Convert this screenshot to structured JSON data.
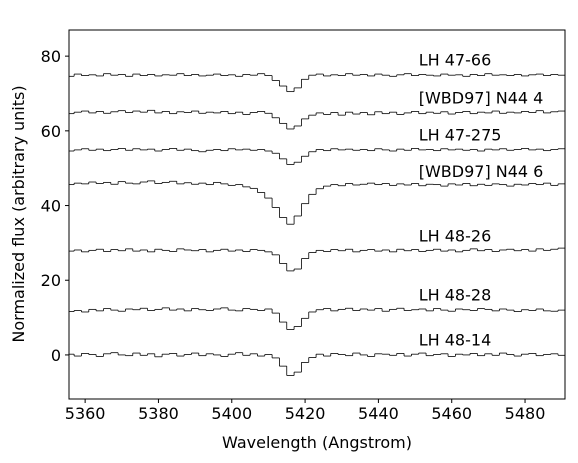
{
  "chart_data": {
    "type": "line",
    "drawstyle": "steps-mid",
    "x_label": "Wavelength (Angstrom)",
    "y_label": "Normalized flux (arbitrary units)",
    "xlim": [
      5355.6,
      5490.9
    ],
    "ylim": [
      -11.8,
      87
    ],
    "xticks": [
      5360,
      5380,
      5400,
      5420,
      5440,
      5460,
      5480
    ],
    "yticks": [
      0,
      20,
      40,
      60,
      80
    ],
    "x": [
      5356,
      5358,
      5360,
      5362,
      5364,
      5366,
      5368,
      5370,
      5372,
      5374,
      5376,
      5378,
      5380,
      5382,
      5384,
      5386,
      5388,
      5390,
      5392,
      5394,
      5396,
      5398,
      5400,
      5402,
      5404,
      5406,
      5408,
      5410,
      5412,
      5414,
      5416,
      5418,
      5420,
      5422,
      5424,
      5426,
      5428,
      5430,
      5432,
      5434,
      5436,
      5438,
      5440,
      5442,
      5444,
      5446,
      5448,
      5450,
      5452,
      5454,
      5456,
      5458,
      5460,
      5462,
      5464,
      5466,
      5468,
      5470,
      5472,
      5474,
      5476,
      5478,
      5480,
      5482,
      5484,
      5486,
      5488,
      5490
    ],
    "series": [
      {
        "name": "LH 48-14",
        "color": "#000000",
        "values": [
          0.2,
          -0.3,
          0.4,
          0.1,
          -0.4,
          0.3,
          0.6,
          0.0,
          -0.2,
          0.5,
          -0.1,
          0.3,
          -0.5,
          0.2,
          0.4,
          -0.3,
          0.1,
          0.5,
          -0.2,
          0.3,
          0.0,
          -0.4,
          0.2,
          0.6,
          -0.1,
          0.3,
          -0.3,
          0.1,
          -0.8,
          -3.0,
          -5.5,
          -4.6,
          -2.0,
          -0.7,
          0.2,
          -0.3,
          0.4,
          0.1,
          -0.2,
          0.5,
          0.0,
          -0.4,
          0.3,
          0.2,
          -0.1,
          0.4,
          -0.3,
          0.2,
          0.5,
          -0.2,
          0.1,
          0.3,
          -0.4,
          0.2,
          0.0,
          0.4,
          -0.2,
          0.3,
          -0.1,
          0.5,
          0.1,
          -0.3,
          0.2,
          0.4,
          -0.2,
          0.1,
          0.3,
          -0.1
        ]
      },
      {
        "name": "LH 48-28",
        "color": "#000000",
        "values": [
          11.6,
          11.9,
          11.5,
          12.2,
          11.8,
          12.4,
          12.0,
          11.7,
          12.3,
          12.1,
          12.5,
          11.9,
          12.2,
          12.6,
          12.0,
          12.3,
          11.8,
          12.4,
          12.1,
          11.9,
          12.3,
          12.6,
          12.0,
          11.8,
          12.4,
          12.2,
          11.9,
          12.3,
          11.2,
          8.8,
          6.8,
          7.6,
          9.8,
          11.5,
          12.1,
          12.4,
          11.8,
          12.2,
          12.5,
          11.9,
          12.3,
          12.0,
          12.4,
          11.7,
          12.2,
          12.5,
          11.9,
          12.1,
          12.3,
          11.8,
          12.4,
          12.0,
          11.7,
          12.3,
          12.1,
          11.9,
          12.4,
          12.2,
          11.8,
          12.3,
          12.0,
          11.6,
          12.1,
          11.9,
          12.3,
          11.8,
          11.7,
          12.0
        ]
      },
      {
        "name": "LH 48-26",
        "color": "#000000",
        "values": [
          27.8,
          28.1,
          27.6,
          28.0,
          28.3,
          27.7,
          28.2,
          27.9,
          28.4,
          27.8,
          28.1,
          27.6,
          28.3,
          28.0,
          27.7,
          28.4,
          28.1,
          27.9,
          28.2,
          27.6,
          28.0,
          28.3,
          27.8,
          28.1,
          27.7,
          28.2,
          28.0,
          27.6,
          26.8,
          24.5,
          22.5,
          23.0,
          25.8,
          27.4,
          28.0,
          27.7,
          28.2,
          27.9,
          28.3,
          27.6,
          28.0,
          28.2,
          27.8,
          28.1,
          27.6,
          28.3,
          27.9,
          28.2,
          27.7,
          28.0,
          28.3,
          27.8,
          28.1,
          27.6,
          28.0,
          28.4,
          27.9,
          28.2,
          27.7,
          28.1,
          28.3,
          27.9,
          28.2,
          27.8,
          28.4,
          28.0,
          28.3,
          28.6
        ]
      },
      {
        "name": "[WBD97] N44 6",
        "color": "#000000",
        "values": [
          45.6,
          46.0,
          45.8,
          46.3,
          45.9,
          46.2,
          45.7,
          46.4,
          46.0,
          45.8,
          46.3,
          46.6,
          45.9,
          46.2,
          46.5,
          45.8,
          46.1,
          45.7,
          46.0,
          45.6,
          46.2,
          45.8,
          45.4,
          45.6,
          45.0,
          44.6,
          43.5,
          42.0,
          39.5,
          36.8,
          35.0,
          37.2,
          40.5,
          43.0,
          44.5,
          45.2,
          45.6,
          45.3,
          45.9,
          45.5,
          45.7,
          46.0,
          45.6,
          45.9,
          45.4,
          45.8,
          45.5,
          45.9,
          45.3,
          45.7,
          45.6,
          45.2,
          45.8,
          45.5,
          45.9,
          45.3,
          45.7,
          45.4,
          45.8,
          45.6,
          45.2,
          45.7,
          45.5,
          45.9,
          45.6,
          46.0,
          45.4,
          45.8
        ]
      },
      {
        "name": "LH 47-275",
        "color": "#000000",
        "values": [
          54.6,
          54.9,
          55.2,
          54.8,
          55.1,
          54.7,
          55.0,
          55.3,
          54.8,
          55.2,
          54.9,
          55.1,
          54.6,
          55.0,
          55.3,
          54.8,
          55.1,
          54.7,
          54.4,
          54.8,
          55.0,
          54.7,
          55.2,
          54.9,
          55.1,
          54.8,
          55.0,
          54.6,
          54.0,
          52.5,
          51.0,
          51.6,
          53.2,
          54.4,
          55.0,
          54.7,
          55.2,
          54.9,
          55.1,
          54.8,
          55.0,
          54.7,
          55.2,
          54.9,
          54.6,
          55.1,
          54.8,
          55.3,
          54.9,
          55.0,
          54.7,
          55.2,
          54.9,
          55.1,
          54.8,
          55.0,
          54.6,
          55.1,
          54.9,
          55.2,
          54.8,
          55.0,
          55.3,
          54.9,
          55.1,
          54.7,
          55.0,
          55.2
        ]
      },
      {
        "name": "[WBD97] N44 4",
        "color": "#000000",
        "values": [
          64.6,
          65.0,
          65.3,
          64.8,
          65.2,
          64.7,
          65.1,
          65.4,
          64.9,
          65.3,
          65.0,
          65.5,
          64.8,
          65.2,
          64.6,
          65.1,
          64.9,
          65.3,
          64.7,
          65.0,
          64.8,
          65.2,
          64.6,
          65.0,
          64.4,
          64.9,
          65.2,
          64.7,
          63.5,
          62.0,
          60.5,
          61.3,
          63.2,
          64.2,
          64.8,
          64.4,
          64.9,
          64.2,
          65.0,
          64.5,
          64.9,
          64.3,
          65.1,
          64.6,
          65.0,
          64.4,
          64.8,
          65.2,
          64.6,
          65.0,
          64.7,
          65.1,
          64.5,
          64.9,
          65.2,
          64.6,
          65.0,
          64.8,
          65.3,
          64.7,
          65.0,
          64.8,
          65.2,
          64.9,
          65.4,
          64.8,
          65.1,
          65.3
        ]
      },
      {
        "name": "LH 47-66",
        "color": "#000000",
        "values": [
          74.6,
          75.2,
          74.8,
          75.0,
          74.7,
          75.3,
          74.9,
          75.1,
          74.6,
          75.2,
          74.8,
          75.1,
          74.7,
          75.0,
          74.9,
          75.3,
          74.8,
          75.1,
          74.7,
          74.9,
          75.2,
          74.8,
          75.0,
          74.6,
          75.1,
          74.9,
          75.3,
          74.8,
          73.5,
          72.0,
          70.5,
          71.5,
          73.8,
          74.9,
          75.2,
          74.7,
          75.0,
          74.8,
          75.3,
          74.9,
          75.1,
          74.7,
          75.2,
          74.9,
          74.6,
          75.0,
          75.3,
          74.8,
          75.1,
          74.9,
          74.7,
          75.2,
          74.9,
          75.0,
          74.6,
          75.1,
          74.8,
          75.3,
          74.9,
          75.0,
          74.8,
          75.1,
          74.7,
          75.0,
          75.2,
          74.8,
          75.1,
          74.9
        ]
      }
    ]
  }
}
